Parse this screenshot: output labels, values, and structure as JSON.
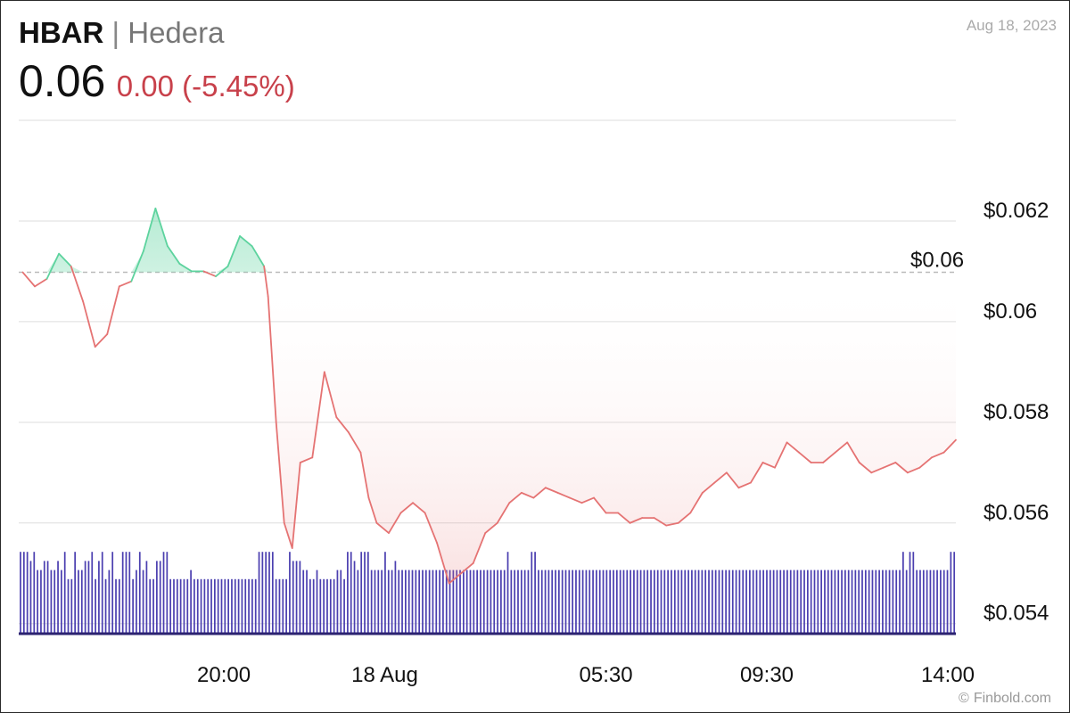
{
  "header": {
    "symbol": "HBAR",
    "separator": "|",
    "name": "Hedera",
    "price": "0.06",
    "change": "0.00 (-5.45%)",
    "date": "Aug 18, 2023"
  },
  "footer": {
    "credit_icon": "©",
    "credit": "Finbold.com"
  },
  "colors": {
    "up": "#5dd39e",
    "down": "#e57373",
    "volume": "#4b3fb0",
    "grid": "#dddddd"
  },
  "chart_data": {
    "type": "line",
    "y_tick_labels": [
      "$0.062",
      "$0.06",
      "$0.058",
      "$0.056",
      "$0.054"
    ],
    "y_tick_values": [
      0.062,
      0.06,
      0.058,
      0.056,
      0.054
    ],
    "ylim": [
      0.0538,
      0.064
    ],
    "reference": {
      "label": "$0.06",
      "value": 0.06098
    },
    "x_tick_labels": [
      "20:00",
      "18 Aug",
      "05:30",
      "09:30",
      "14:00"
    ],
    "x_tick_positions": [
      20,
      24,
      29.5,
      33.5,
      38
    ],
    "xlim": [
      14.9,
      38.2
    ],
    "price_x": [
      15.0,
      15.3,
      15.6,
      15.9,
      16.2,
      16.5,
      16.8,
      17.1,
      17.4,
      17.7,
      18.0,
      18.3,
      18.6,
      18.9,
      19.2,
      19.5,
      19.8,
      20.1,
      20.4,
      20.7,
      21.0,
      21.1,
      21.3,
      21.5,
      21.7,
      21.9,
      22.2,
      22.5,
      22.8,
      23.1,
      23.4,
      23.6,
      23.8,
      24.1,
      24.4,
      24.7,
      25.0,
      25.3,
      25.6,
      25.9,
      26.2,
      26.5,
      26.8,
      27.1,
      27.4,
      27.7,
      28.0,
      28.3,
      28.6,
      28.9,
      29.2,
      29.5,
      29.8,
      30.1,
      30.4,
      30.7,
      31.0,
      31.3,
      31.6,
      31.9,
      32.2,
      32.5,
      32.8,
      33.1,
      33.4,
      33.7,
      34.0,
      34.3,
      34.6,
      34.9,
      35.2,
      35.5,
      35.8,
      36.1,
      36.4,
      36.7,
      37.0,
      37.3,
      37.6,
      37.9,
      38.2
    ],
    "price_y": [
      0.06098,
      0.0607,
      0.06085,
      0.06135,
      0.0611,
      0.0604,
      0.0595,
      0.05975,
      0.0607,
      0.0608,
      0.0614,
      0.06225,
      0.0615,
      0.06115,
      0.061,
      0.061,
      0.0609,
      0.0611,
      0.0617,
      0.0615,
      0.0611,
      0.0605,
      0.058,
      0.056,
      0.0555,
      0.0572,
      0.0573,
      0.059,
      0.0581,
      0.0578,
      0.0574,
      0.0565,
      0.056,
      0.0558,
      0.0562,
      0.0564,
      0.0562,
      0.0556,
      0.0548,
      0.055,
      0.0552,
      0.0558,
      0.056,
      0.0564,
      0.0566,
      0.0565,
      0.0567,
      0.0566,
      0.0565,
      0.0564,
      0.0565,
      0.0562,
      0.0562,
      0.056,
      0.0561,
      0.0561,
      0.05595,
      0.056,
      0.0562,
      0.0566,
      0.0568,
      0.057,
      0.0567,
      0.0568,
      0.0572,
      0.0571,
      0.0576,
      0.0574,
      0.0572,
      0.0572,
      0.0574,
      0.0576,
      0.0572,
      0.057,
      0.0571,
      0.0572,
      0.057,
      0.0571,
      0.0573,
      0.0574,
      0.05765
    ],
    "volume_values": [
      9,
      9,
      9,
      8,
      9,
      7,
      7,
      8,
      8,
      7,
      7,
      8,
      7,
      9,
      6,
      6,
      9,
      7,
      7,
      8,
      8,
      9,
      6,
      8,
      9,
      6,
      7,
      9,
      6,
      6,
      9,
      9,
      9,
      6,
      7,
      9,
      7,
      8,
      6,
      6,
      8,
      8,
      9,
      9,
      6,
      6,
      6,
      6,
      6,
      6,
      7,
      6,
      6,
      6,
      6,
      6,
      6,
      6,
      6,
      6,
      6,
      6,
      6,
      6,
      6,
      6,
      6,
      6,
      6,
      6,
      9,
      9,
      9,
      9,
      9,
      6,
      6,
      6,
      6,
      9,
      8,
      8,
      8,
      7,
      7,
      6,
      6,
      7,
      6,
      6,
      6,
      6,
      6,
      7,
      7,
      6,
      9,
      9,
      8,
      7,
      9,
      9,
      9,
      7,
      7,
      7,
      7,
      9,
      7,
      7,
      8,
      7,
      7,
      7,
      7,
      7,
      7,
      7,
      7,
      7,
      7,
      7,
      7,
      7,
      7,
      7,
      7,
      7,
      7,
      7,
      7,
      7,
      7,
      7,
      7,
      7,
      7,
      7,
      7,
      7,
      7,
      7,
      7,
      9,
      7,
      7,
      7,
      7,
      7,
      7,
      9,
      9,
      7,
      7,
      7,
      7,
      7,
      7,
      7,
      7,
      7,
      7,
      7,
      7,
      7,
      7,
      7,
      7,
      7,
      7,
      7,
      7,
      7,
      7,
      7,
      7,
      7,
      7,
      7,
      7,
      7,
      7,
      7,
      7,
      7,
      7,
      7,
      7,
      7,
      7,
      7,
      7,
      7,
      7,
      7,
      7,
      7,
      7,
      7,
      7,
      7,
      7,
      7,
      7,
      7,
      7,
      7,
      7,
      7,
      7,
      7,
      7,
      7,
      7,
      7,
      7,
      7,
      7,
      7,
      7,
      7,
      7,
      7,
      7,
      7,
      7,
      7,
      7,
      7,
      7,
      7,
      7,
      7,
      7,
      7,
      7,
      7,
      7,
      7,
      7,
      7,
      7,
      7,
      7,
      7,
      7,
      7,
      7,
      7,
      7,
      7,
      7,
      7,
      7,
      7,
      7,
      7,
      7,
      7,
      9,
      7,
      9,
      9,
      7,
      7,
      7,
      7,
      7,
      7,
      7,
      7,
      7,
      7,
      9,
      9
    ]
  }
}
